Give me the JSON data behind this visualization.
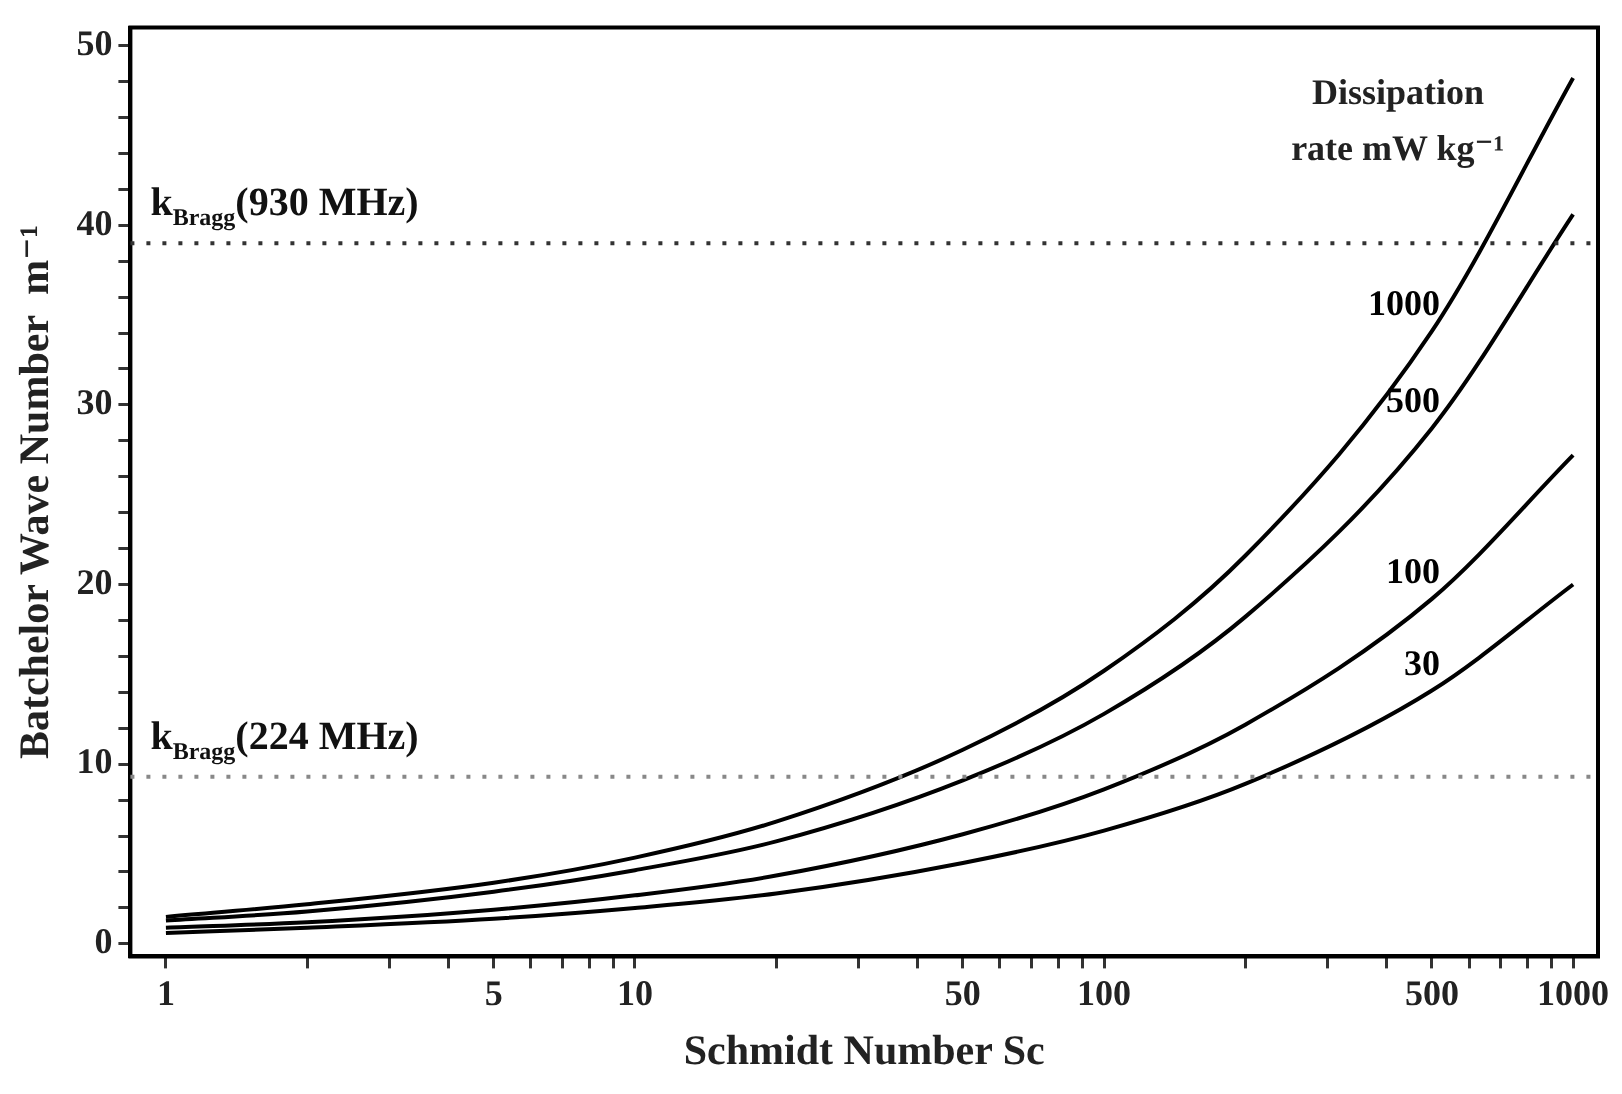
{
  "chart_data": {
    "type": "line",
    "xlabel": "Schmidt Number Sc",
    "ylabel": "Batchelor Wave Number  m⁻¹",
    "legend_title": "Dissipation rate mW kg⁻¹",
    "x": [
      1,
      2,
      5,
      10,
      20,
      50,
      100,
      200,
      500,
      1000
    ],
    "series": [
      {
        "name": "1000",
        "color": "#000000",
        "values": [
          1.5,
          2.2,
          3.4,
          4.8,
          6.8,
          10.8,
          15.2,
          21.6,
          34.1,
          48.2
        ]
      },
      {
        "name": "500",
        "color": "#000000",
        "values": [
          1.3,
          1.8,
          2.9,
          4.1,
          5.7,
          9.1,
          12.8,
          18.2,
          28.7,
          40.6
        ]
      },
      {
        "name": "100",
        "color": "#000000",
        "values": [
          0.9,
          1.2,
          1.9,
          2.7,
          3.8,
          6.1,
          8.6,
          12.2,
          19.2,
          27.2
        ]
      },
      {
        "name": "30",
        "color": "#000000",
        "values": [
          0.6,
          0.9,
          1.4,
          2.0,
          2.8,
          4.5,
          6.3,
          8.9,
          14.1,
          20.0
        ]
      }
    ],
    "log": "x",
    "xlim": [
      0.84,
      1130
    ],
    "ylim": [
      -0.7,
      51
    ],
    "xticks": [
      1,
      {
        "value": 2,
        "label": null
      },
      {
        "value": 3,
        "label": null
      },
      {
        "value": 4,
        "label": null
      },
      5,
      {
        "value": 6,
        "label": null
      },
      {
        "value": 7,
        "label": null
      },
      {
        "value": 8,
        "label": null
      },
      {
        "value": 9,
        "label": null
      },
      10,
      {
        "value": 20,
        "label": null
      },
      {
        "value": 30,
        "label": null
      },
      {
        "value": 40,
        "label": null
      },
      50,
      {
        "value": 60,
        "label": null
      },
      {
        "value": 70,
        "label": null
      },
      {
        "value": 80,
        "label": null
      },
      {
        "value": 90,
        "label": null
      },
      100,
      {
        "value": 200,
        "label": null
      },
      {
        "value": 300,
        "label": null
      },
      {
        "value": 400,
        "label": null
      },
      500,
      {
        "value": 600,
        "label": null
      },
      {
        "value": 700,
        "label": null
      },
      {
        "value": 800,
        "label": null
      },
      {
        "value": 900,
        "label": null
      },
      1000
    ],
    "yticks": [
      0,
      {
        "value": 2,
        "label": null
      },
      {
        "value": 4,
        "label": null
      },
      {
        "value": 6,
        "label": null
      },
      {
        "value": 8,
        "label": null
      },
      10,
      {
        "value": 12,
        "label": null
      },
      {
        "value": 14,
        "label": null
      },
      {
        "value": 16,
        "label": null
      },
      {
        "value": 18,
        "label": null
      },
      20,
      {
        "value": 22,
        "label": null
      },
      {
        "value": 24,
        "label": null
      },
      {
        "value": 26,
        "label": null
      },
      {
        "value": 28,
        "label": null
      },
      30,
      {
        "value": 32,
        "label": null
      },
      {
        "value": 34,
        "label": null
      },
      {
        "value": 36,
        "label": null
      },
      {
        "value": 38,
        "label": null
      },
      40,
      {
        "value": 42,
        "label": null
      },
      {
        "value": 44,
        "label": null
      },
      {
        "value": 46,
        "label": null
      },
      {
        "value": 48,
        "label": null
      },
      50
    ],
    "ref_lines": [
      {
        "axis": "y",
        "value": 39,
        "label": "k$_{Bragg}$(930 MHz)",
        "color": "#333333",
        "line_style": "dotted"
      },
      {
        "axis": "y",
        "value": 9.3,
        "label": "k$_{Bragg}$(224 MHz)",
        "color": "#888888",
        "line_style": "dotted"
      }
    ],
    "grid": false,
    "legend": false,
    "marker": "none",
    "line_style": "solid"
  }
}
